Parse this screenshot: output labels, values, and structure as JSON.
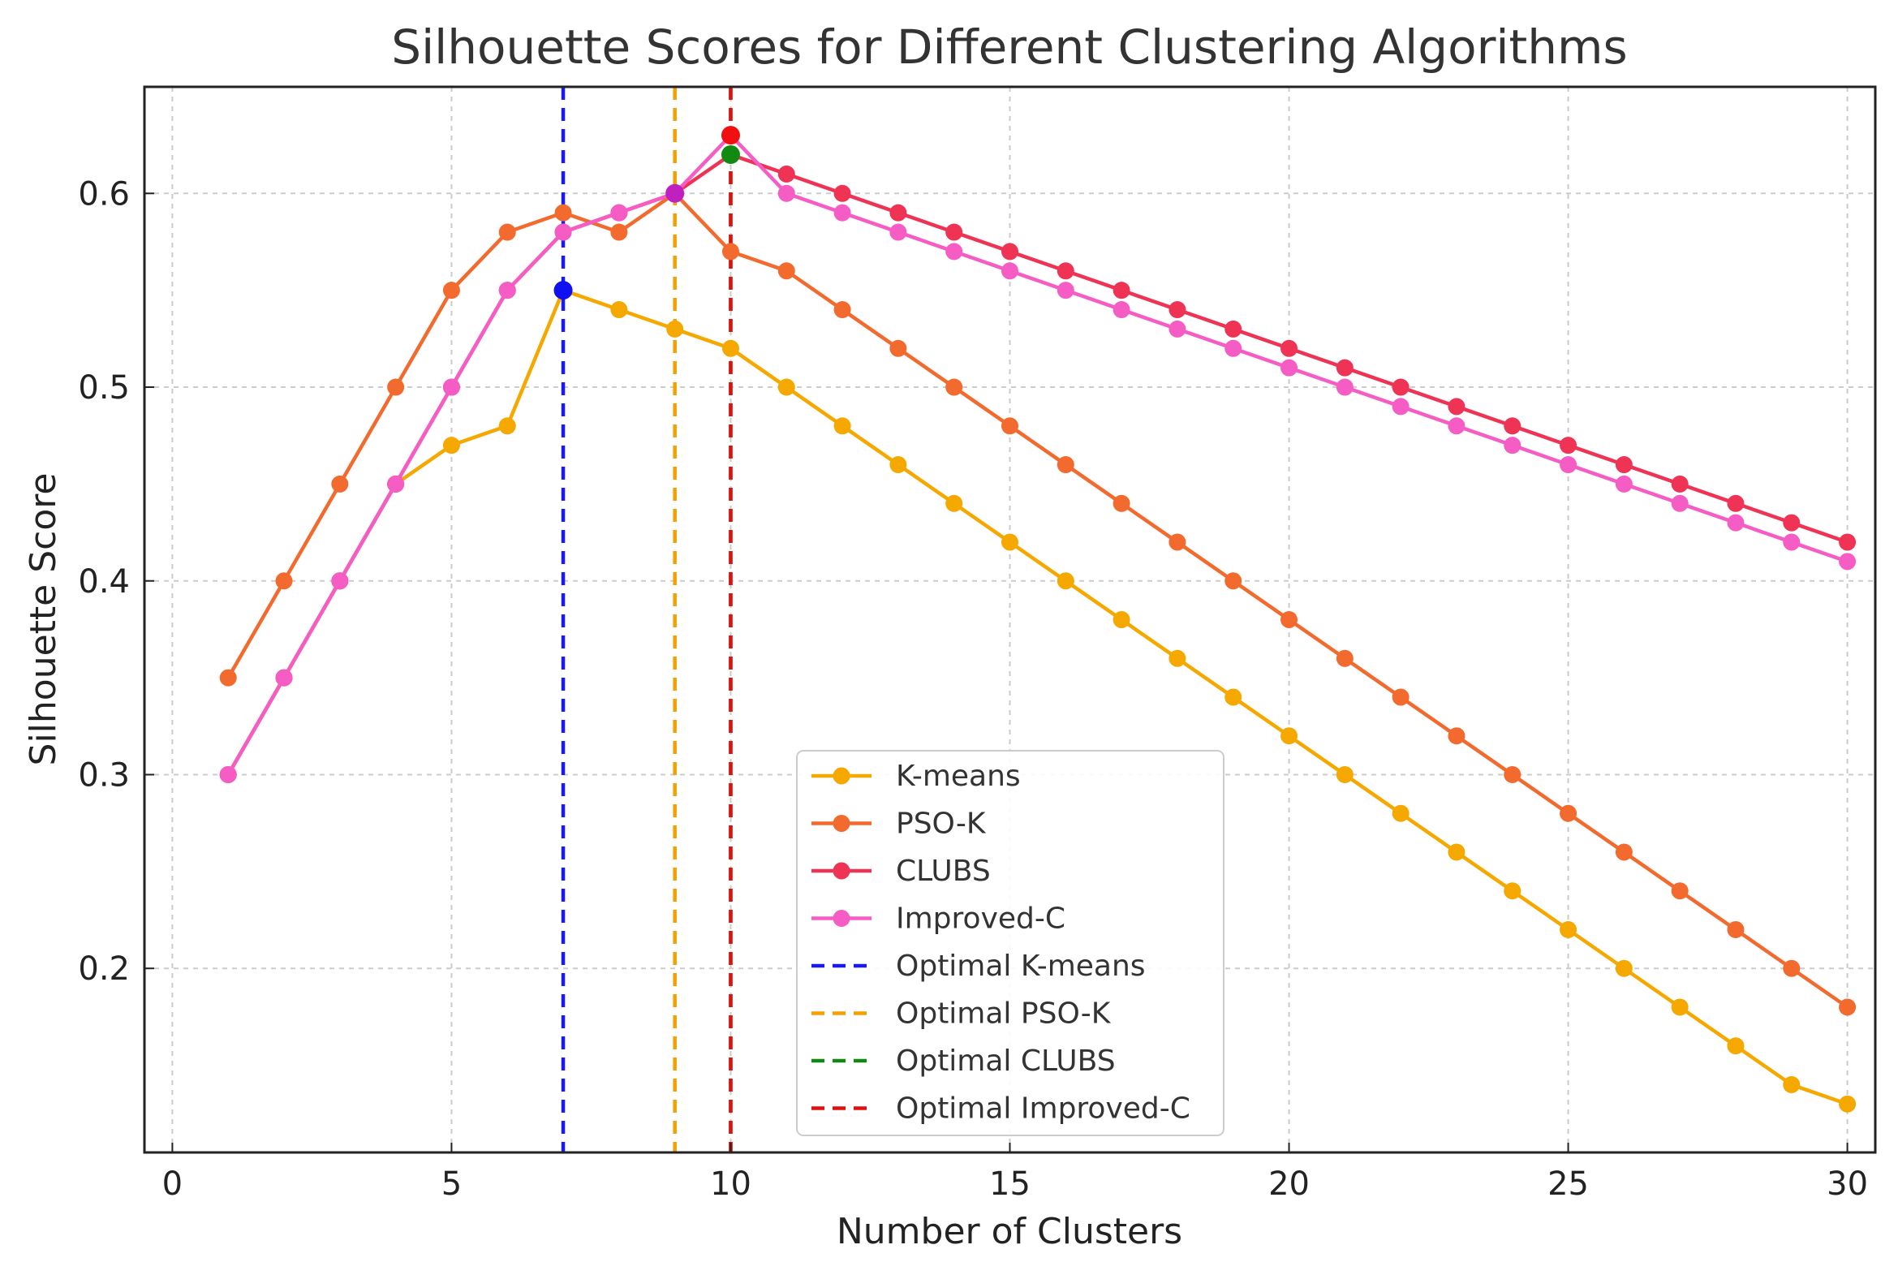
{
  "chart_data": {
    "type": "line",
    "title": "Silhouette Scores for Different Clustering Algorithms",
    "xlabel": "Number of Clusters",
    "ylabel": "Silhouette Score",
    "xlim": [
      -0.5,
      30.5
    ],
    "ylim": [
      0.105,
      0.655
    ],
    "xticks": [
      0,
      5,
      10,
      15,
      20,
      25,
      30
    ],
    "xtick_labels": [
      "0",
      "5",
      "10",
      "15",
      "20",
      "25",
      "30"
    ],
    "yticks": [
      0.2,
      0.3,
      0.4,
      0.5,
      0.6
    ],
    "ytick_labels": [
      "0.2",
      "0.3",
      "0.4",
      "0.5",
      "0.6"
    ],
    "grid": true,
    "legend_position": "lower-center",
    "x": [
      1,
      2,
      3,
      4,
      5,
      6,
      7,
      8,
      9,
      10,
      11,
      12,
      13,
      14,
      15,
      16,
      17,
      18,
      19,
      20,
      21,
      22,
      23,
      24,
      25,
      26,
      27,
      28,
      29,
      30
    ],
    "series": [
      {
        "name": "K-means",
        "color": "#F5A800",
        "values": [
          0.3,
          0.35,
          0.4,
          0.45,
          0.47,
          0.48,
          0.55,
          0.54,
          0.53,
          0.52,
          0.5,
          0.48,
          0.46,
          0.44,
          0.42,
          0.4,
          0.38,
          0.36,
          0.34,
          0.32,
          0.3,
          0.28,
          0.26,
          0.24,
          0.22,
          0.2,
          0.18,
          0.16,
          0.14,
          0.13
        ]
      },
      {
        "name": "PSO-K",
        "color": "#F26A2E",
        "values": [
          0.35,
          0.4,
          0.45,
          0.5,
          0.55,
          0.58,
          0.59,
          0.58,
          0.6,
          0.57,
          0.56,
          0.54,
          0.52,
          0.5,
          0.48,
          0.46,
          0.44,
          0.42,
          0.4,
          0.38,
          0.36,
          0.34,
          0.32,
          0.3,
          0.28,
          0.26,
          0.24,
          0.22,
          0.2,
          0.18
        ]
      },
      {
        "name": "CLUBS",
        "color": "#EE3355",
        "values": [
          0.3,
          0.35,
          0.4,
          0.45,
          0.5,
          0.55,
          0.58,
          0.59,
          0.6,
          0.62,
          0.61,
          0.6,
          0.59,
          0.58,
          0.57,
          0.56,
          0.55,
          0.54,
          0.53,
          0.52,
          0.51,
          0.5,
          0.49,
          0.48,
          0.47,
          0.46,
          0.45,
          0.44,
          0.43,
          0.42
        ]
      },
      {
        "name": "Improved-C",
        "color": "#F55CC4",
        "values": [
          0.3,
          0.35,
          0.4,
          0.45,
          0.5,
          0.55,
          0.58,
          0.59,
          0.6,
          0.63,
          0.6,
          0.59,
          0.58,
          0.57,
          0.56,
          0.55,
          0.54,
          0.53,
          0.52,
          0.51,
          0.5,
          0.49,
          0.48,
          0.47,
          0.46,
          0.45,
          0.44,
          0.43,
          0.42,
          0.41
        ]
      }
    ],
    "optimal_lines": [
      {
        "name": "Optimal K-means",
        "color": "#1A1AEE",
        "x": 7
      },
      {
        "name": "Optimal PSO-K",
        "color": "#F5A000",
        "x": 9
      },
      {
        "name": "Optimal CLUBS",
        "color": "#128A12",
        "x": 10
      },
      {
        "name": "Optimal Improved-C",
        "color": "#E01010",
        "x": 10
      }
    ],
    "optimal_points": [
      {
        "name": "K-means optimum",
        "color": "#1010F0",
        "x": 7,
        "y": 0.55
      },
      {
        "name": "PSO-K optimum",
        "color": "#C020C0",
        "x": 9,
        "y": 0.6
      },
      {
        "name": "CLUBS optimum",
        "color": "#128A12",
        "x": 10,
        "y": 0.62
      },
      {
        "name": "Improved-C optimum",
        "color": "#F01010",
        "x": 10,
        "y": 0.63
      }
    ]
  }
}
